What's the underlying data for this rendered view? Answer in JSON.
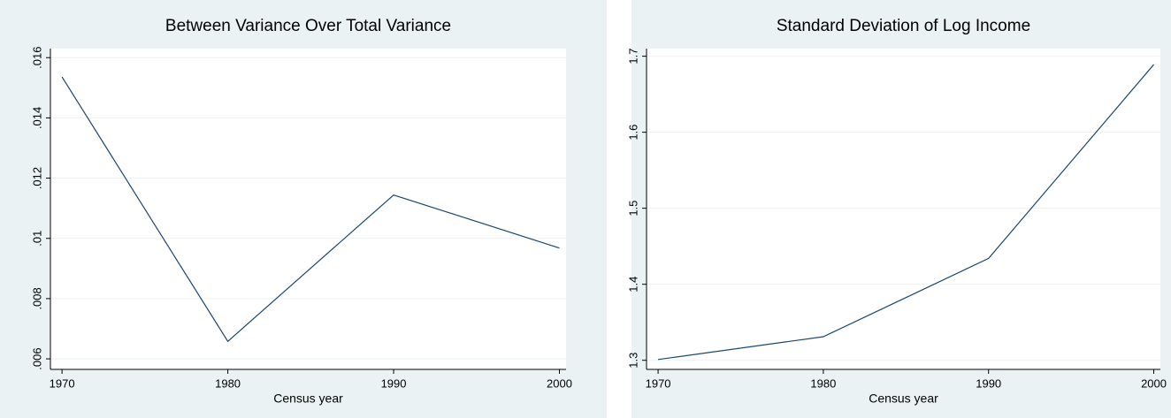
{
  "chart_data": [
    {
      "type": "line",
      "title": "Between Variance Over Total Variance",
      "xlabel": "Census year",
      "x": [
        1970,
        1980,
        1990,
        2000
      ],
      "values": [
        0.01536,
        0.00658,
        0.01144,
        0.00968
      ],
      "color": "#1a476f",
      "xlim": [
        1969.3,
        2000.4
      ],
      "xticks": [
        1970,
        1980,
        1990,
        2000
      ],
      "ylim": [
        0.00565,
        0.0163
      ],
      "yticks": [
        {
          "value": 0.006,
          "label": ".006"
        },
        {
          "value": 0.008,
          "label": ".008"
        },
        {
          "value": 0.01,
          "label": ".01"
        },
        {
          "value": 0.012,
          "label": ".012"
        },
        {
          "value": 0.014,
          "label": ".014"
        },
        {
          "value": 0.016,
          "label": ".016"
        }
      ],
      "grid": true
    },
    {
      "type": "line",
      "title": "Standard Deviation of Log Income",
      "xlabel": "Census year",
      "x": [
        1970,
        1980,
        1990,
        2000
      ],
      "values": [
        1.301,
        1.331,
        1.434,
        1.689
      ],
      "color": "#1a476f",
      "xlim": [
        1969.3,
        2000.4
      ],
      "xticks": [
        1970,
        1980,
        1990,
        2000
      ],
      "ylim": [
        1.288,
        1.71
      ],
      "yticks": [
        1.3,
        1.4,
        1.5,
        1.6,
        1.7
      ],
      "grid": true
    }
  ]
}
